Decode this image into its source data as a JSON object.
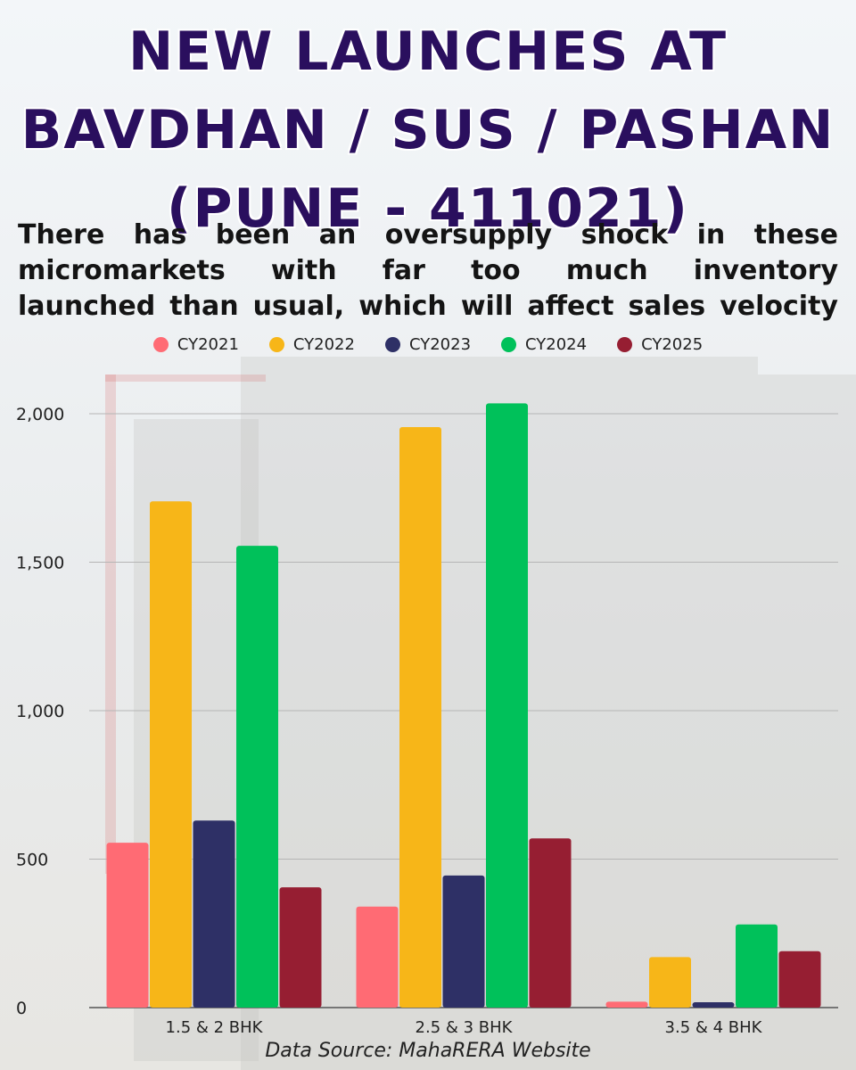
{
  "title_lines": [
    "NEW LAUNCHES AT",
    "BAVDHAN / SUS / PASHAN",
    "(PUNE - 411021)"
  ],
  "subtitle_lines": [
    "There has been an oversupply shock in these",
    "micromarkets with far too much inventory",
    "launched than usual, which will affect sales velocity"
  ],
  "source": "Data Source: MahaRERA Website",
  "chart_data": {
    "type": "bar",
    "categories": [
      "1.5 & 2 BHK",
      "2.5 & 3 BHK",
      "3.5 & 4 BHK"
    ],
    "series": [
      {
        "name": "CY2021",
        "color": "#ff6b74",
        "values": [
          555,
          340,
          20
        ]
      },
      {
        "name": "CY2022",
        "color": "#f7b618",
        "values": [
          1705,
          1955,
          170
        ]
      },
      {
        "name": "CY2023",
        "color": "#2e3066",
        "values": [
          630,
          445,
          18
        ]
      },
      {
        "name": "CY2024",
        "color": "#00c15a",
        "values": [
          1555,
          2035,
          280
        ]
      },
      {
        "name": "CY2025",
        "color": "#961e32",
        "values": [
          405,
          570,
          190
        ]
      }
    ],
    "yticks": [
      0,
      500,
      1000,
      1500,
      2000
    ],
    "ytick_labels": [
      "0",
      "500",
      "1,000",
      "1,500",
      "2,000"
    ],
    "ylim": [
      0,
      2000
    ],
    "grid": true,
    "legend": "top-center"
  }
}
